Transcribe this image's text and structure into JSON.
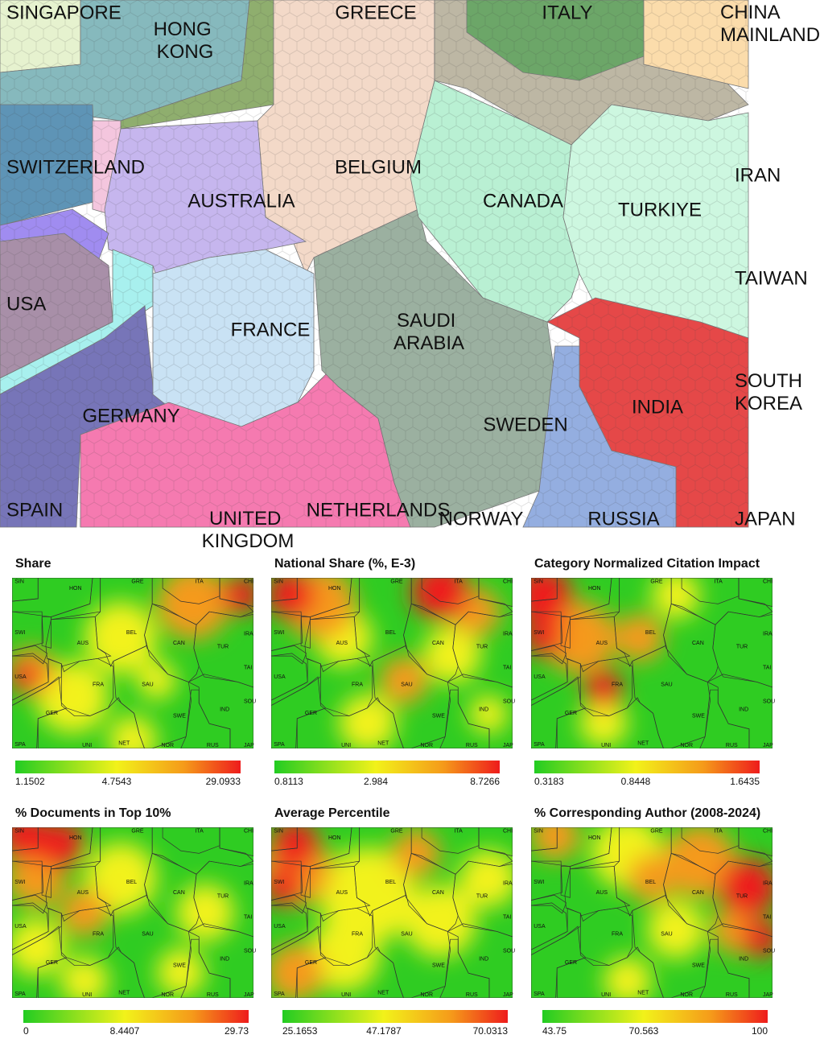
{
  "map": {
    "regions": [
      "SINGAPORE",
      "HONG KONG",
      "GREECE",
      "ITALY",
      "CHINA MAINLAND",
      "SWITZERLAND",
      "BELGIUM",
      "AUSTRALIA",
      "CANADA",
      "TURKIYE",
      "IRAN",
      "TAIWAN",
      "USA",
      "FRANCE",
      "SAUDI ARABIA",
      "SOUTH KOREA",
      "INDIA",
      "GERMANY",
      "SWEDEN",
      "SPAIN",
      "UNITED KINGDOM",
      "NETHERLANDS",
      "NORWAY",
      "RUSSIA",
      "JAPAN"
    ]
  },
  "abbreviations": [
    "SIN",
    "HON",
    "GRE",
    "ITA",
    "CHI",
    "SWI",
    "AUS",
    "BEL",
    "CAN",
    "TUR",
    "IRA",
    "USA",
    "FRA",
    "SAU",
    "TAI",
    "GER",
    "SWE",
    "IND",
    "SOU",
    "SPA",
    "UNI",
    "NET",
    "NOR",
    "RUS",
    "JAP"
  ],
  "panels": [
    {
      "title": "Share",
      "legend": [
        1.1502,
        4.7543,
        29.0933
      ]
    },
    {
      "title": "National Share (%, E-3)",
      "legend": [
        0.8113,
        2.984,
        8.7266
      ]
    },
    {
      "title": "Category Normalized Citation Impact",
      "legend": [
        0.3183,
        0.8448,
        1.6435
      ]
    },
    {
      "title": "% Documents in Top 10%",
      "legend": [
        0,
        8.4407,
        29.73
      ]
    },
    {
      "title": "Average Percentile",
      "legend": [
        25.1653,
        47.1787,
        70.0313
      ]
    },
    {
      "title": "% Corresponding Author (2008-2024)",
      "legend": [
        43.75,
        70.563,
        100
      ]
    }
  ]
}
